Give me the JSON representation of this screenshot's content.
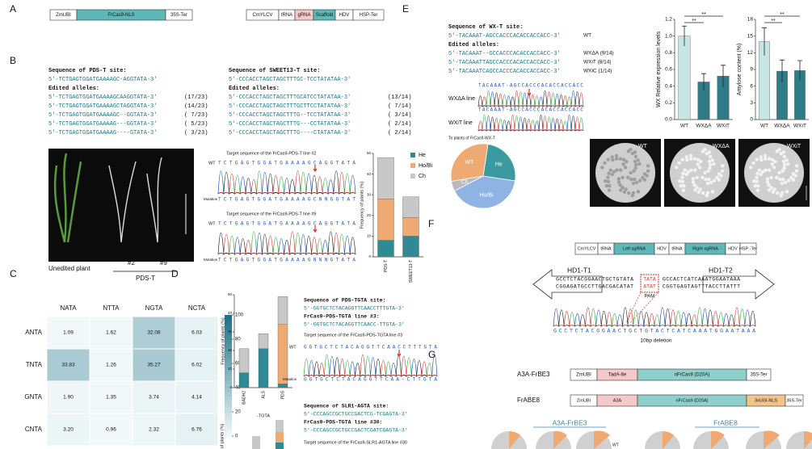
{
  "panel_labels": [
    "A",
    "B",
    "C",
    "D",
    "E",
    "F",
    "G"
  ],
  "a": {
    "construct1": [
      "ZmUBI",
      "FrCas9-NLS",
      "35S-Ter"
    ],
    "construct2": [
      "CmYLCV",
      "tRNA",
      "gRNA",
      "Scaffold",
      "HDV",
      "HSP-Ter"
    ]
  },
  "b": {
    "left": {
      "title": "Sequence of PDS-T site:",
      "site": "5'-TCTGAGTGGATGAAAAGC-AGGTATA-3'",
      "edited_title": "Edited alleles:",
      "alleles": [
        {
          "seq": "5'-TCTGAGTGGATGAAAAGCAAGGTATA-3'",
          "count": "(17/23)"
        },
        {
          "seq": "5'-TCTGAGTGGATGAAAAGCTAGGTATA-3'",
          "count": "(14/23)"
        },
        {
          "seq": "5'-TCTGAGTGGATGAAAAGC--GGTATA-3'",
          "count": "( 7/23)"
        },
        {
          "seq": "5'-TCTGAGTGGATGAAAAG---GGTATA-3'",
          "count": "( 5/23)"
        },
        {
          "seq": "5'-TCTGAGTGGATGAAAAG----GTATA-3'",
          "count": "( 3/23)"
        }
      ]
    },
    "right": {
      "title": "Sequence of SWEET13-T site:",
      "site": "5'-CCCACCTAGCTAGCTTTGC-TCCTATATAA-3'",
      "edited_title": "Edited alleles:",
      "alleles": [
        {
          "seq": "5'-CCCACCTAGCTAGCTTTGCATCCTATATAA-3'",
          "count": "(13/14)"
        },
        {
          "seq": "5'-CCCACCTAGCTAGCTTTGCTTCCTATATAA-3'",
          "count": "( 7/14)"
        },
        {
          "seq": "5'-CCCACCTAGCTAGCTTTG--TCCTATATAA-3'",
          "count": "( 3/14)"
        },
        {
          "seq": "5'-CCCACCTAGCTAGCTTTG---CCTATATAA-3'",
          "count": "( 2/14)"
        },
        {
          "seq": "5'-CCCACCTAGCTAGCTTTG----CTATATAA-3'",
          "count": "( 2/14)"
        }
      ]
    },
    "photo_labels": [
      "Unedited plant",
      "#2",
      "#9",
      "PDS-T"
    ],
    "traces": [
      {
        "title": "Target sequence of the FrCas9-PDS-T line #2",
        "wt": "WT",
        "wt_seq": "TCTGAGTGGATGAAAAGCAGGTATA",
        "mut": "Mutation",
        "mut_seq": "TCTGAGTGGATGAAAAGCNNGGTAT"
      },
      {
        "title": "Target sequence of the FrCas9-PDS-T line #9",
        "wt": "WT",
        "wt_seq": "TCTGAGTGGATGAAAAGCAGGTATA",
        "mut": "Mutation",
        "mut_seq": "TCTGAGTGGATGAAAAGNNNGTATA"
      }
    ],
    "chart_data": {
      "type": "bar",
      "ylabel": "Frequency of plants (%)",
      "categories": [
        "PDS-T",
        "SWEET13-T"
      ],
      "series": [
        {
          "name": "He",
          "color": "#2f8a94",
          "values": [
            8,
            10
          ]
        },
        {
          "name": "Ho/Bi",
          "color": "#eeaa72",
          "values": [
            20,
            9
          ]
        },
        {
          "name": "Ch",
          "color": "#c8c8c8",
          "values": [
            20,
            10
          ]
        }
      ],
      "ylim": [
        0,
        50
      ],
      "yticks": [
        0,
        10,
        20,
        30,
        40,
        50
      ]
    }
  },
  "c": {
    "chart_data": {
      "type": "heatmap",
      "columns": [
        "NATA",
        "NTTA",
        "NGTA",
        "NCTA"
      ],
      "rows": [
        "ANTA",
        "TNTA",
        "GNTA",
        "CNTA"
      ],
      "values": [
        [
          1.09,
          1.62,
          32.08,
          6.03
        ],
        [
          33.83,
          1.26,
          35.27,
          6.02
        ],
        [
          1.9,
          1.35,
          3.74,
          4.14
        ],
        [
          3.2,
          0.96,
          2.32,
          6.76
        ]
      ],
      "value_labels": [
        [
          "1.09",
          "1.62",
          "32.08",
          "6.03"
        ],
        [
          "33.83",
          "1.26",
          "35.27",
          "6.02"
        ],
        [
          "1.90",
          "1.35",
          "3.74",
          "4.14"
        ],
        [
          "3.20",
          "0.96",
          "2.32",
          "6.76"
        ]
      ],
      "clim": [
        0,
        100
      ],
      "cticks": [
        0,
        20,
        40,
        60,
        80,
        100
      ]
    }
  },
  "d": {
    "chart_data": {
      "type": "bar",
      "ylabel": "Frequency of plants (%)",
      "xlabel": "-TGTA",
      "categories": [
        "BADH2",
        "ALS",
        "PDS"
      ],
      "series": [
        {
          "name": "He",
          "color": "#2f8a94",
          "values": [
            8,
            21,
            2
          ]
        },
        {
          "name": "Ho/Bi",
          "color": "#eeaa72",
          "values": [
            0,
            0,
            32
          ]
        },
        {
          "name": "Ch",
          "color": "#c8c8c8",
          "values": [
            13,
            8,
            15
          ]
        }
      ],
      "ylim": [
        0,
        50
      ],
      "yticks": [
        0,
        10,
        20,
        30,
        40,
        50
      ]
    },
    "seq1_title": "Sequence of PDS-TGTA site:",
    "seq1": "5'-GGTGCTCTACAGGTTCAACCTTTGTA-3'",
    "line1_title": "FrCas9-PDS-TGTA line #3:",
    "line1": "5'-GGTGCTCTACAGGTTCAACC-TTGTA-3'",
    "trace_title": "Target sequence of the FrCas9-PDS-TGTA line #3",
    "wt": "WT",
    "wt_seq": "GGTGCTCTACAGGTTCAACCTTTGTA",
    "mut": "Mutation",
    "mut_seq": "GGTGCTCTACAGGTTCAA-CTTGTA",
    "seq2_title": "Sequence of SLR1-AGTA site:",
    "seq2": "5'-CCCAGCCGCTGCCGACTCG-TCGAGTA-3'",
    "line2_title": "FrCas9-PDS-TGTA line #30:",
    "line2": "5'-CCCAGCCGCTGCCGACTCGATCGAGTA-3'",
    "trace2_title": "Target sequence of the FrCas9-SLR1-AGTA line #30",
    "ylabel2": "ncy of plants (%)"
  },
  "e": {
    "title": "Sequence of WX-T site:",
    "site": {
      "seq": "5'-TACAAAT-AGCCACCCACACCACCACC-3'",
      "tag": "WT"
    },
    "edited_title": "Edited alleles:",
    "alleles": [
      {
        "seq": "5'-TACAAAT--GCCACCCACACCACCACC-3'",
        "tag": "WXΔA (9/14)"
      },
      {
        "seq": "5'-TACAAATTAGCCACCCACACCACCACC-3'",
        "tag": "WXiT (8/14)"
      },
      {
        "seq": "5'-TACAAATCAGCCACCCACACCACCACC-3'",
        "tag": "WXiC (1/14)"
      }
    ],
    "trace_seq": "TACAAAT-AGCCACCCACACCACCACC",
    "trace_labels": [
      "WXΔA line",
      "WXiT line"
    ],
    "pie": {
      "type": "pie",
      "title": "To plants of FrCas9-WX-T",
      "categories": [
        "He",
        "Ho/Bi",
        "Ch",
        "WT"
      ],
      "values": [
        25,
        40,
        5,
        30
      ],
      "colors": [
        "#3a9aa0",
        "#8fb3e3",
        "#b9b9b9",
        "#eeaa72"
      ]
    },
    "expression": {
      "type": "bar",
      "ylabel": "WX Relative expression levels",
      "categories": [
        "WT",
        "WXΔA",
        "WXiT"
      ],
      "values": [
        1.0,
        0.45,
        0.52
      ],
      "errors": [
        0.12,
        0.1,
        0.13
      ],
      "colors": [
        "#c6e6e6",
        "#2f7c88",
        "#2f7c88"
      ],
      "ylim": [
        0,
        1.2
      ],
      "yticks": [
        {
          "value": 0,
          "label": "0.0"
        },
        0.2,
        0.4,
        0.6,
        0.8,
        {
          "value": 1,
          "label": "1.0"
        },
        1.2
      ],
      "annotations": [
        "**",
        "**"
      ]
    },
    "amylose": {
      "type": "bar",
      "ylabel": "Amylose content (%)",
      "categories": [
        "WT",
        "WXΔA",
        "WXiT"
      ],
      "values": [
        14,
        8.7,
        8.8
      ],
      "errors": [
        2.5,
        2,
        1.8
      ],
      "colors": [
        "#c6e6e6",
        "#2f7c88",
        "#2f7c88"
      ],
      "ylim": [
        0,
        18
      ],
      "yticks": [
        0,
        3,
        6,
        9,
        12,
        15,
        18
      ],
      "annotations": [
        "**",
        "**"
      ]
    },
    "grain_labels": [
      "WT",
      "WXΔA",
      "WXiT"
    ]
  },
  "f": {
    "construct": [
      "CmYLCV",
      "tRNA",
      "Left sgRNA",
      "HDV",
      "tRNA",
      "Right sgRNA",
      "HDV",
      "HSP -Ter"
    ],
    "target1": "HD1-T1",
    "target2": "HD1-T2",
    "left_top": "GCCTCTACGGAACTGCTGTATA",
    "left_bottom": "CGGAGATGCCTTGACGACATAT",
    "mid_top": "TATA",
    "mid_bottom": "ATAT",
    "right_top": "GCCACTCATCAAATGGAATAAA",
    "right_bottom": "CGGTGAGTAGTTTACCTTATTT",
    "pam": "PAM",
    "trace_seq": "GCCTCTACGGAACTGCTGTACTCATCAAATGGAATAAA",
    "deletion": "10bp deletion"
  },
  "g": {
    "construct1_name": "A3A-FrBE3",
    "construct1": [
      "ZmUBI",
      "TadA-8e",
      "nFrCas9 (D20A)",
      "35S-Ter"
    ],
    "construct2_name": "FrABE8",
    "construct2": [
      "ZmUBI",
      "A3A",
      "nFrCas9 (D20A)",
      "3xUGI-NLS",
      "35S-Ter"
    ],
    "group_labels": [
      "A3A-FrBE3",
      "FrABE8"
    ],
    "legend": "WT"
  }
}
